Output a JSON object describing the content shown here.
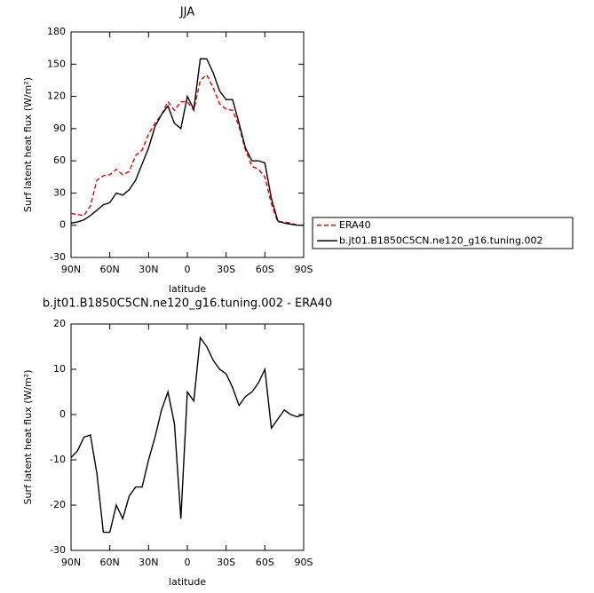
{
  "chart_data": [
    {
      "type": "line",
      "title": "JJA",
      "x_label": "latitude",
      "y_label": "Surf latent heat flux (W/m²)",
      "x": [
        90,
        85,
        80,
        75,
        70,
        65,
        60,
        55,
        50,
        45,
        40,
        35,
        30,
        25,
        20,
        15,
        10,
        5,
        0,
        -5,
        -10,
        -15,
        -20,
        -25,
        -30,
        -35,
        -40,
        -45,
        -50,
        -55,
        -60,
        -65,
        -70,
        -75,
        -80,
        -85,
        -90
      ],
      "series": [
        {
          "name": "ERA40",
          "color": "#e00000",
          "dash": true,
          "values": [
            11,
            10,
            9,
            18,
            42,
            46,
            47,
            52,
            47,
            50,
            65,
            70,
            85,
            95,
            103,
            115,
            107,
            115,
            115,
            107,
            135,
            140,
            128,
            113,
            108,
            107,
            92,
            70,
            55,
            52,
            45,
            20,
            3,
            3,
            2,
            0,
            0
          ]
        },
        {
          "name": "b.jt01.B1850C5CN.ne120_g16.tuning.002",
          "color": "#000000",
          "dash": false,
          "values": [
            2,
            3,
            5,
            9,
            14,
            19,
            21,
            30,
            28,
            33,
            42,
            57,
            72,
            92,
            103,
            111,
            95,
            90,
            120,
            108,
            155,
            155,
            142,
            125,
            117,
            117,
            95,
            72,
            60,
            60,
            58,
            25,
            4,
            2,
            1,
            0,
            0
          ]
        }
      ],
      "xlim": [
        90,
        -90
      ],
      "xticks": [
        {
          "value": 90,
          "label": "90N"
        },
        {
          "value": 60,
          "label": "60N"
        },
        {
          "value": 30,
          "label": "30N"
        },
        0,
        {
          "value": -30,
          "label": "30S"
        },
        {
          "value": -60,
          "label": "60S"
        },
        {
          "value": -90,
          "label": "90S"
        }
      ],
      "ylim": [
        -30,
        180
      ],
      "yticks": [
        -30,
        0,
        30,
        60,
        90,
        120,
        150,
        180
      ],
      "legend": "right"
    },
    {
      "type": "line",
      "title": "b.jt01.B1850C5CN.ne120_g16.tuning.002 - ERA40",
      "x_label": "latitude",
      "y_label": "Surf latent heat flux (W/m²)",
      "x": [
        90,
        85,
        80,
        75,
        70,
        65,
        60,
        55,
        50,
        45,
        40,
        35,
        30,
        25,
        20,
        15,
        10,
        5,
        0,
        -5,
        -10,
        -15,
        -20,
        -25,
        -30,
        -35,
        -40,
        -45,
        -50,
        -55,
        -60,
        -65,
        -70,
        -75,
        -80,
        -85,
        -90
      ],
      "series": [
        {
          "color": "#000000",
          "dash": false,
          "values": [
            -9.5,
            -8,
            -5,
            -4.5,
            -13,
            -26,
            -26,
            -20,
            -23,
            -18,
            -16,
            -16,
            -10,
            -5,
            1,
            5,
            -2,
            -23,
            5,
            3,
            17,
            15,
            12,
            10,
            9,
            6,
            2,
            4,
            5,
            7,
            10,
            -3,
            -1,
            1,
            0,
            -0.5,
            0
          ]
        }
      ],
      "xlim": [
        90,
        -90
      ],
      "xticks": [
        {
          "value": 90,
          "label": "90N"
        },
        {
          "value": 60,
          "label": "60N"
        },
        {
          "value": 30,
          "label": "30N"
        },
        0,
        {
          "value": -30,
          "label": "30S"
        },
        {
          "value": -60,
          "label": "60S"
        },
        {
          "value": -90,
          "label": "90S"
        }
      ],
      "ylim": [
        -30,
        20
      ],
      "yticks": [
        -30,
        -20,
        -10,
        0,
        10,
        20
      ]
    }
  ]
}
